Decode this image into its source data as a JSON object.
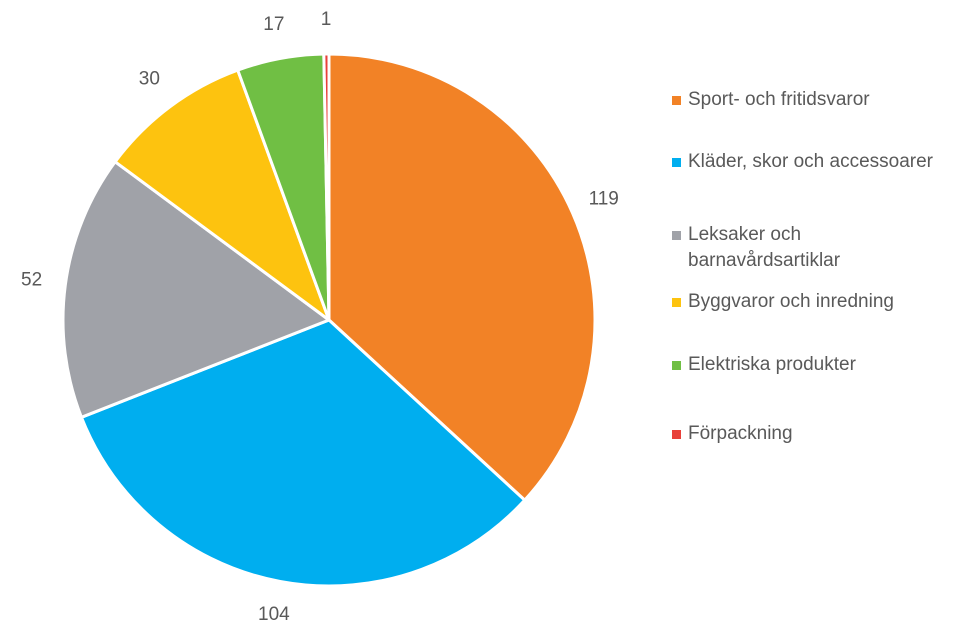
{
  "chart_data": {
    "type": "pie",
    "categories": [
      "Sport- och fritidsvaror",
      "Kläder, skor och accessoarer",
      "Leksaker och barnavårdsartiklar",
      "Byggvaror och inredning",
      "Elektriska produkter",
      "Förpackning"
    ],
    "values": [
      119,
      104,
      52,
      30,
      17,
      1
    ],
    "colors": [
      "#f28226",
      "#00aeef",
      "#a0a2a8",
      "#fdc30f",
      "#70bf44",
      "#e8413a"
    ],
    "legend": "right"
  }
}
